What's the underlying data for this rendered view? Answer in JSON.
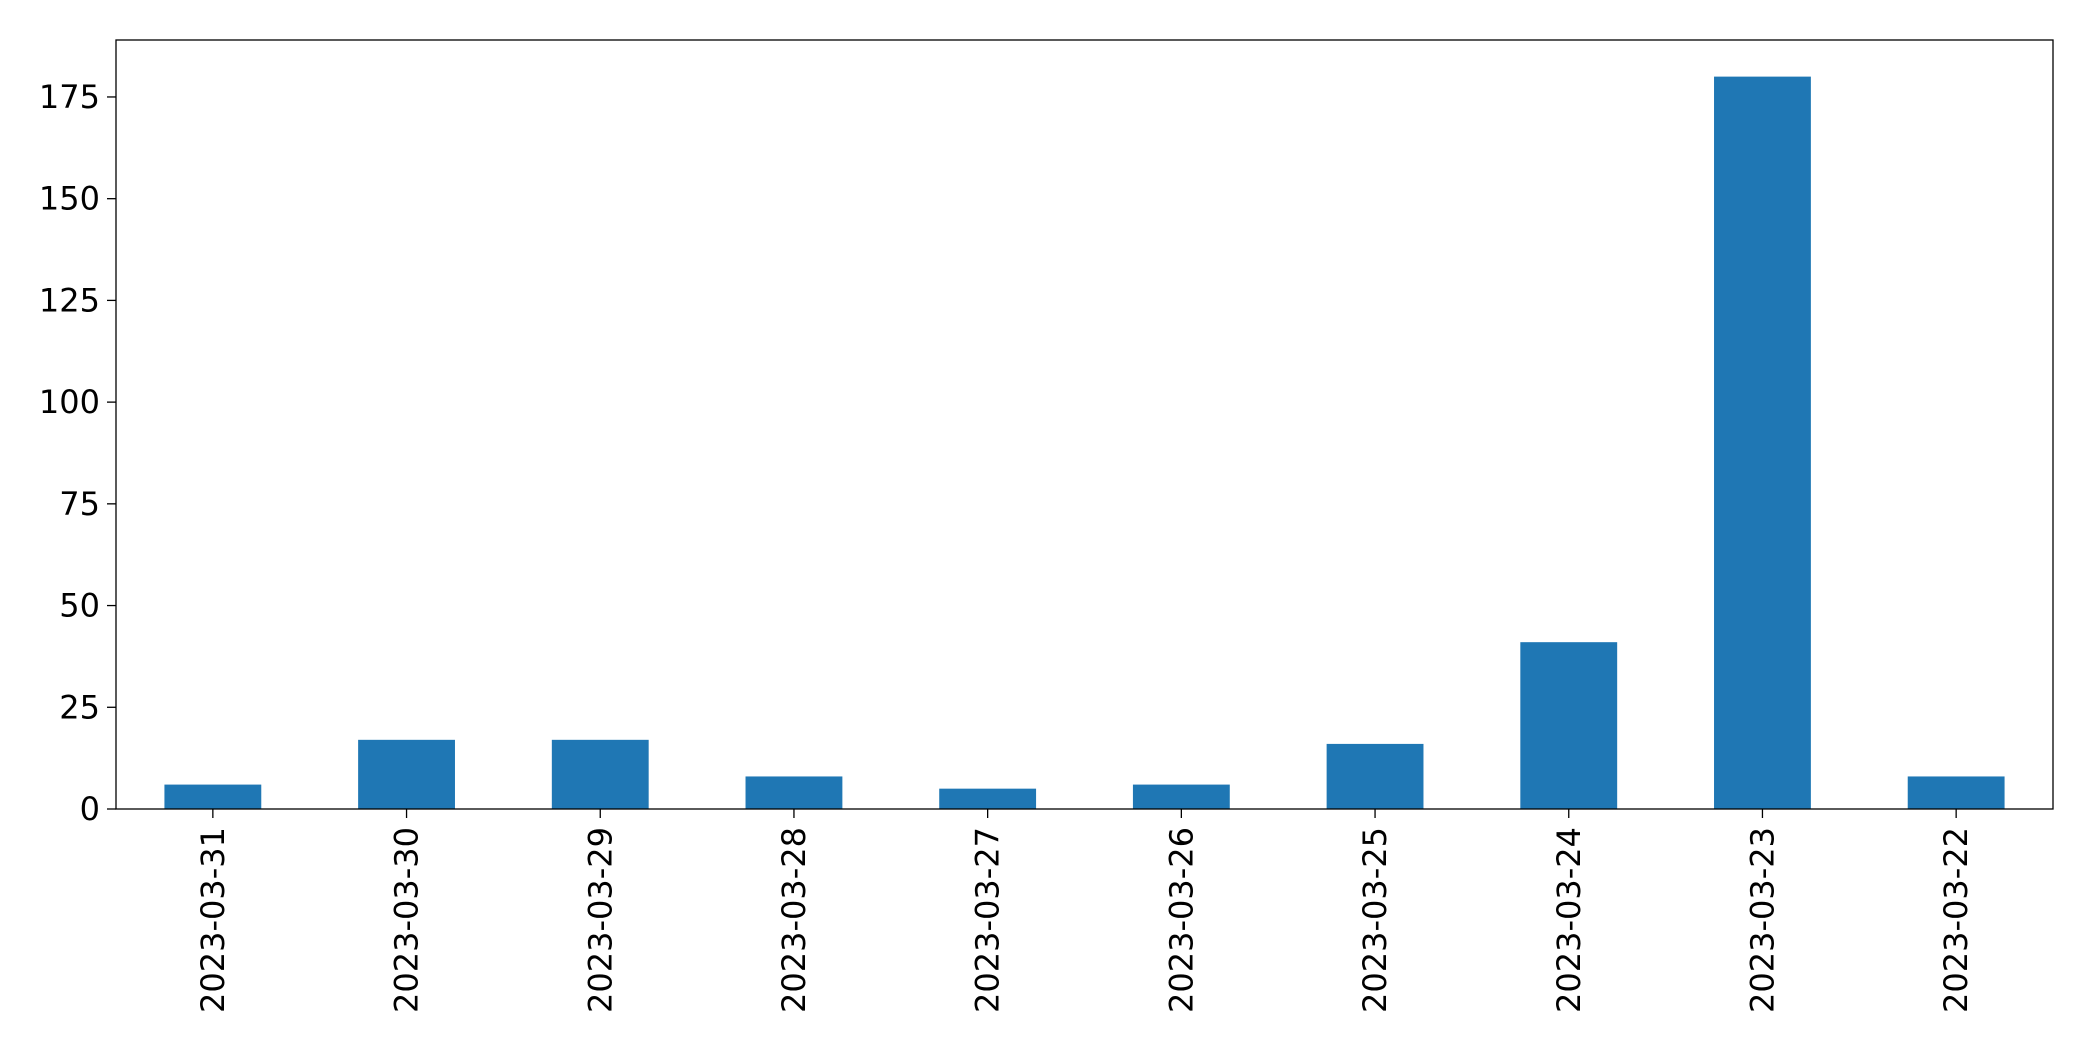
{
  "chart_data": {
    "type": "bar",
    "categories": [
      "2023-03-31",
      "2023-03-30",
      "2023-03-29",
      "2023-03-28",
      "2023-03-27",
      "2023-03-26",
      "2023-03-25",
      "2023-03-24",
      "2023-03-23",
      "2023-03-22"
    ],
    "values": [
      6,
      17,
      17,
      8,
      5,
      6,
      16,
      41,
      180,
      8
    ],
    "color": "#1f77b4",
    "ylim": [
      0,
      189
    ],
    "yticks": [
      0,
      25,
      50,
      75,
      100,
      125,
      150,
      175
    ],
    "grid": false
  }
}
